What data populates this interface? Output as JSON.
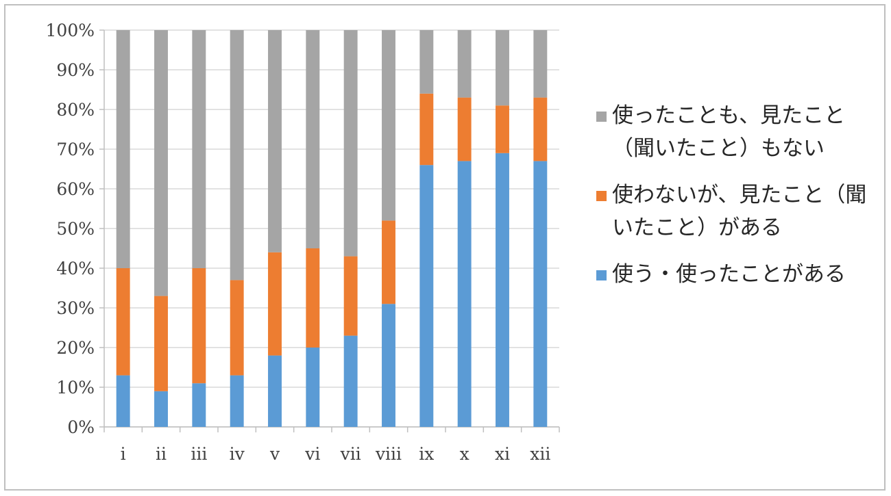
{
  "chart_data": {
    "type": "bar",
    "stacked": true,
    "percent": true,
    "categories": [
      "i",
      "ii",
      "iii",
      "iv",
      "v",
      "vi",
      "vii",
      "viii",
      "ix",
      "x",
      "xi",
      "xii"
    ],
    "series": [
      {
        "name": "使う・使ったことがある",
        "color": "#5b9bd5",
        "values": [
          13,
          9,
          11,
          13,
          18,
          20,
          23,
          31,
          66,
          67,
          69,
          67
        ]
      },
      {
        "name": "使わないが、見たこと（聞いたこと）がある",
        "color": "#ed7d31",
        "values": [
          27,
          24,
          29,
          24,
          26,
          25,
          20,
          21,
          18,
          16,
          12,
          16
        ]
      },
      {
        "name": "使ったことも、見たこと（聞いたこと）もない",
        "color": "#a5a5a5",
        "values": [
          60,
          67,
          60,
          63,
          56,
          55,
          57,
          48,
          16,
          17,
          19,
          17
        ]
      }
    ],
    "ylim": [
      0,
      100
    ],
    "yticks": [
      "0%",
      "10%",
      "20%",
      "30%",
      "40%",
      "50%",
      "60%",
      "70%",
      "80%",
      "90%",
      "100%"
    ],
    "grid": true,
    "legend_position": "right"
  }
}
